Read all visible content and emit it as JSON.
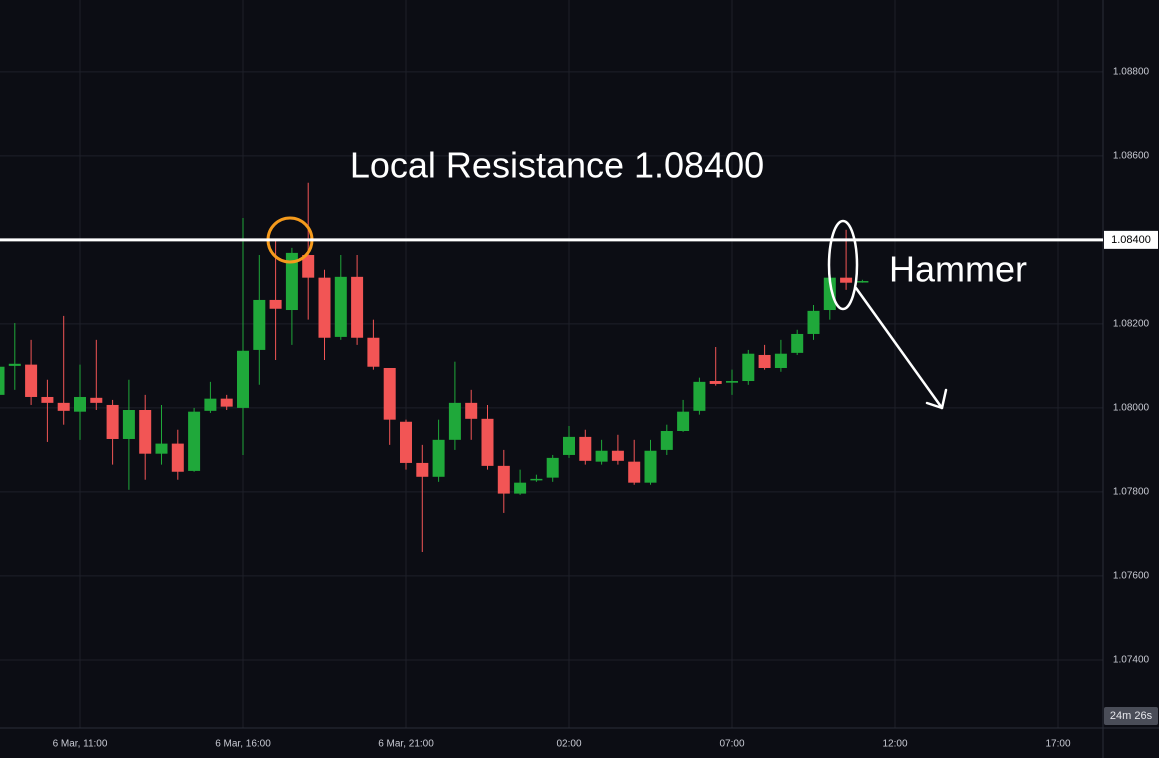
{
  "chart_data": {
    "type": "candlestick",
    "categories": [
      null,
      null,
      null,
      null,
      null,
      "6 Mar, 11:00",
      null,
      null,
      null,
      null,
      null,
      null,
      null,
      null,
      null,
      "6 Mar, 16:00",
      null,
      null,
      null,
      null,
      null,
      null,
      null,
      null,
      null,
      "6 Mar, 21:00",
      null,
      null,
      null,
      null,
      null,
      null,
      null,
      null,
      null,
      "02:00",
      null,
      null,
      null,
      null,
      null,
      null,
      null,
      null,
      null,
      "07:00",
      null,
      null,
      null,
      null,
      null,
      null,
      null,
      null,
      null,
      "12:00",
      null,
      null,
      null,
      null,
      null,
      null,
      null,
      null,
      null,
      "17:00"
    ],
    "open": [
      1.08031,
      1.081,
      1.08103,
      1.08026,
      1.08012,
      1.07991,
      1.08024,
      1.08007,
      1.07926,
      1.07995,
      1.07891,
      1.07915,
      1.0785,
      1.07993,
      1.08022,
      1.08,
      1.08138,
      1.08257,
      1.08233,
      1.08364,
      1.0831,
      1.08169,
      1.08312,
      1.08167,
      1.08095,
      1.07967,
      1.07869,
      1.07836,
      1.07924,
      1.08012,
      1.07974,
      1.07862,
      1.07796,
      1.07829,
      1.07834,
      1.07888,
      1.07931,
      1.07872,
      1.07898,
      1.07872,
      1.07822,
      1.079,
      1.07945,
      1.07993,
      1.08064,
      1.0806,
      1.08064,
      1.08126,
      1.08095,
      1.08131,
      1.08176,
      1.08233,
      1.0831,
      1.083,
      null,
      null,
      null,
      null,
      null,
      null,
      null,
      null,
      null,
      null,
      null,
      null
    ],
    "high": [
      1.08126,
      1.08202,
      1.08162,
      1.08067,
      1.08219,
      1.08103,
      1.08162,
      1.08019,
      1.08067,
      1.08031,
      1.08007,
      1.07948,
      1.08,
      1.08062,
      1.08031,
      1.08452,
      1.08364,
      1.084,
      1.08381,
      1.08536,
      1.08329,
      1.08364,
      1.08364,
      1.0821,
      1.08095,
      1.07972,
      1.07912,
      1.07972,
      1.0811,
      1.08043,
      1.08007,
      1.079,
      1.07853,
      1.07841,
      1.07888,
      1.07957,
      1.07948,
      1.07924,
      1.07936,
      1.07924,
      1.07924,
      1.0796,
      1.08019,
      1.08072,
      1.08145,
      1.08091,
      1.08138,
      1.0815,
      1.08162,
      1.08186,
      1.08245,
      1.08312,
      1.08424,
      1.08305,
      null,
      null,
      null,
      null,
      null,
      null,
      null,
      null,
      null,
      null,
      null,
      null
    ],
    "low": [
      1.08019,
      1.08043,
      1.08007,
      1.07919,
      1.0796,
      1.07924,
      1.07995,
      1.07865,
      1.07805,
      1.07829,
      1.07865,
      1.07829,
      1.07848,
      1.07988,
      1.07995,
      1.07888,
      1.08055,
      1.08114,
      1.0815,
      1.0821,
      1.08114,
      1.08162,
      1.0815,
      1.08091,
      1.07912,
      1.07853,
      1.07657,
      1.07824,
      1.079,
      1.07924,
      1.07853,
      1.0775,
      1.07793,
      1.07824,
      1.07824,
      1.07881,
      1.07865,
      1.07865,
      1.07865,
      1.07817,
      1.07817,
      1.07888,
      1.07943,
      1.07984,
      1.08053,
      1.08031,
      1.08055,
      1.08091,
      1.08086,
      1.08126,
      1.08162,
      1.0821,
      1.08281,
      1.08298,
      null,
      null,
      null,
      null,
      null,
      null,
      null,
      null,
      null,
      null,
      null,
      null
    ],
    "close": [
      1.08098,
      1.08105,
      1.08026,
      1.08012,
      1.07993,
      1.08026,
      1.08012,
      1.07926,
      1.07995,
      1.07891,
      1.07915,
      1.07848,
      1.07991,
      1.08022,
      1.08003,
      1.08136,
      1.08257,
      1.08236,
      1.08369,
      1.0831,
      1.08167,
      1.08312,
      1.08167,
      1.08098,
      1.07972,
      1.07869,
      1.07836,
      1.07924,
      1.08012,
      1.07974,
      1.07862,
      1.07796,
      1.07822,
      1.07831,
      1.07881,
      1.07931,
      1.07874,
      1.07898,
      1.07874,
      1.07822,
      1.07898,
      1.07945,
      1.07991,
      1.08062,
      1.08057,
      1.08064,
      1.08129,
      1.08095,
      1.08129,
      1.08176,
      1.08231,
      1.0831,
      1.08298,
      1.08302,
      null,
      null,
      null,
      null,
      null,
      null,
      null,
      null,
      null,
      null,
      null,
      null
    ],
    "up_color": "#1fa83a",
    "down_color": "#f25555",
    "ylim": [
      1.07238,
      1.08971
    ],
    "yticks": [
      {
        "value": 1.074,
        "label": "1.07400"
      },
      {
        "value": 1.076,
        "label": "1.07600"
      },
      {
        "value": 1.078,
        "label": "1.07800"
      },
      {
        "value": 1.08,
        "label": "1.08000"
      },
      {
        "value": 1.082,
        "label": "1.08200"
      },
      {
        "value": 1.084,
        "label": "1.08400"
      },
      {
        "value": 1.086,
        "label": "1.08600"
      },
      {
        "value": 1.088,
        "label": "1.08800"
      }
    ],
    "grid": true,
    "resistance": {
      "value": 1.084,
      "label": "1.08400"
    },
    "annotations": [
      "Local Resistance 1.08400",
      "Hammer"
    ],
    "countdown": "24m 26s"
  }
}
